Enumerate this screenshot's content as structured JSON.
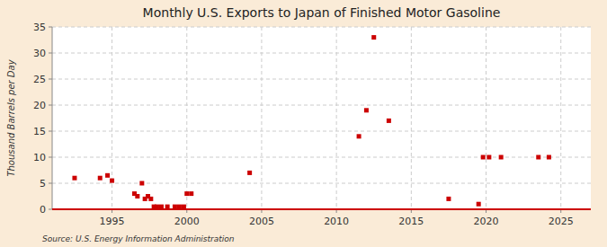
{
  "chart_data": {
    "type": "scatter",
    "title": "Monthly U.S. Exports to Japan of Finished Motor Gasoline",
    "ylabel": "Thousand Barrels per Day",
    "source": "Source: U.S. Energy Information Administration",
    "x": [
      1992.5,
      1994.2,
      1994.7,
      1995.0,
      1996.5,
      1996.7,
      1997.0,
      1997.2,
      1997.4,
      1997.6,
      1997.8,
      1998.0,
      1998.3,
      1998.7,
      1999.2,
      1999.5,
      1999.8,
      2000.0,
      2000.3,
      2004.2,
      2011.5,
      2012.0,
      2012.5,
      2013.5,
      2017.5,
      2019.5,
      2019.8,
      2020.2,
      2021.0,
      2023.5,
      2024.2
    ],
    "y": [
      6.0,
      6.0,
      6.5,
      5.5,
      3.0,
      2.5,
      5.0,
      2.0,
      2.5,
      2.0,
      0.5,
      0.5,
      0.5,
      0.5,
      0.5,
      0.5,
      0.5,
      3.0,
      3.0,
      7.0,
      14.0,
      19.0,
      33.0,
      17.0,
      2.0,
      1.0,
      10.0,
      10.0,
      10.0,
      10.0,
      10.0
    ],
    "color": "#cc0000",
    "marker": "square",
    "xlim": [
      1991,
      2027
    ],
    "ylim": [
      0,
      35
    ],
    "xticks": [
      1995,
      2000,
      2005,
      2010,
      2015,
      2020,
      2025
    ],
    "yticks": [
      0,
      5,
      10,
      15,
      20,
      25,
      30,
      35
    ],
    "grid": true
  }
}
